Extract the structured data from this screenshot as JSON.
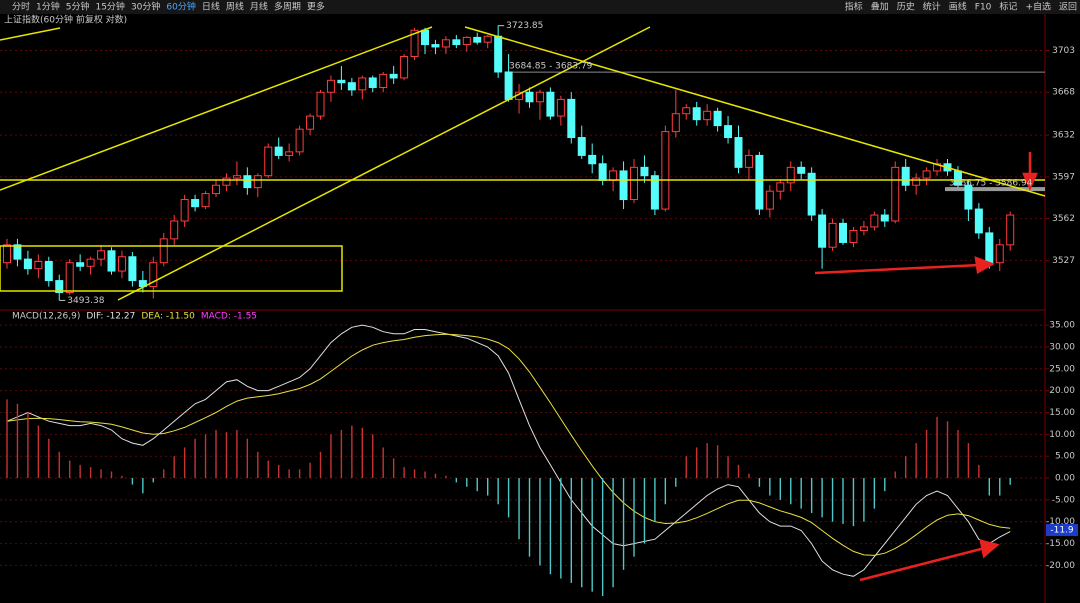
{
  "toolbar": {
    "periods": [
      "分时",
      "1分钟",
      "5分钟",
      "15分钟",
      "30分钟",
      "60分钟",
      "日线",
      "周线",
      "月线",
      "多周期",
      "更多"
    ],
    "active_index": 5,
    "tools": [
      "指标",
      "叠加",
      "历史",
      "统计",
      "画线",
      "F10",
      "标记",
      "+自选",
      "返回"
    ]
  },
  "chart_data": [
    {
      "type": "candlestick",
      "title": "上证指数(60分钟 前复权 对数)",
      "ylim": [
        3487,
        3737
      ],
      "yticks": [
        3527,
        3562,
        3597,
        3632,
        3668,
        3703
      ],
      "grid": true,
      "up_color": "#ff3c3c",
      "down_color": "#54fcfc",
      "high_label": 3723.85,
      "low_label": 3493.38,
      "levels": [
        {
          "value": 3684.85,
          "label": "3684.85 - 3683.79"
        },
        {
          "value": 3586.75,
          "label": "3586.75 - 3586.94"
        }
      ],
      "ohlc": [
        [
          3525,
          3545,
          3520,
          3540
        ],
        [
          3540,
          3545,
          3522,
          3528
        ],
        [
          3528,
          3535,
          3515,
          3520
        ],
        [
          3520,
          3532,
          3512,
          3526
        ],
        [
          3526,
          3530,
          3505,
          3510
        ],
        [
          3510,
          3515,
          3493.38,
          3500
        ],
        [
          3500,
          3528,
          3498,
          3525
        ],
        [
          3525,
          3532,
          3518,
          3522
        ],
        [
          3522,
          3530,
          3515,
          3528
        ],
        [
          3528,
          3540,
          3522,
          3535
        ],
        [
          3535,
          3538,
          3515,
          3518
        ],
        [
          3518,
          3535,
          3512,
          3530
        ],
        [
          3530,
          3534,
          3505,
          3510
        ],
        [
          3510,
          3518,
          3500,
          3505
        ],
        [
          3505,
          3530,
          3495,
          3525
        ],
        [
          3525,
          3550,
          3522,
          3545
        ],
        [
          3545,
          3565,
          3540,
          3560
        ],
        [
          3560,
          3582,
          3555,
          3578
        ],
        [
          3578,
          3582,
          3568,
          3572
        ],
        [
          3572,
          3585,
          3570,
          3583
        ],
        [
          3583,
          3595,
          3580,
          3590
        ],
        [
          3590,
          3600,
          3585,
          3596
        ],
        [
          3596,
          3610,
          3590,
          3598
        ],
        [
          3598,
          3605,
          3582,
          3588
        ],
        [
          3588,
          3600,
          3580,
          3598
        ],
        [
          3598,
          3625,
          3596,
          3622
        ],
        [
          3622,
          3630,
          3612,
          3615
        ],
        [
          3615,
          3625,
          3610,
          3618
        ],
        [
          3618,
          3640,
          3615,
          3637
        ],
        [
          3637,
          3650,
          3632,
          3648
        ],
        [
          3648,
          3670,
          3645,
          3668
        ],
        [
          3668,
          3682,
          3660,
          3678
        ],
        [
          3678,
          3690,
          3670,
          3676
        ],
        [
          3676,
          3680,
          3665,
          3670
        ],
        [
          3670,
          3682,
          3662,
          3680
        ],
        [
          3680,
          3682,
          3668,
          3672
        ],
        [
          3672,
          3685,
          3668,
          3683
        ],
        [
          3683,
          3690,
          3675,
          3680
        ],
        [
          3680,
          3700,
          3678,
          3698
        ],
        [
          3698,
          3722,
          3695,
          3720
        ],
        [
          3720,
          3722,
          3700,
          3708
        ],
        [
          3708,
          3712,
          3700,
          3706
        ],
        [
          3706,
          3715,
          3700,
          3712
        ],
        [
          3712,
          3716,
          3705,
          3708
        ],
        [
          3708,
          3715,
          3702,
          3714
        ],
        [
          3714,
          3718,
          3708,
          3710
        ],
        [
          3710,
          3716,
          3705,
          3715
        ],
        [
          3715,
          3723.85,
          3680,
          3685
        ],
        [
          3685,
          3700,
          3660,
          3662
        ],
        [
          3662,
          3675,
          3650,
          3668
        ],
        [
          3668,
          3672,
          3655,
          3660
        ],
        [
          3660,
          3670,
          3645,
          3668
        ],
        [
          3668,
          3672,
          3645,
          3648
        ],
        [
          3648,
          3665,
          3640,
          3662
        ],
        [
          3662,
          3668,
          3625,
          3630
        ],
        [
          3630,
          3640,
          3612,
          3615
        ],
        [
          3615,
          3625,
          3600,
          3608
        ],
        [
          3608,
          3615,
          3590,
          3594
        ],
        [
          3594,
          3605,
          3585,
          3602
        ],
        [
          3602,
          3610,
          3570,
          3578
        ],
        [
          3578,
          3612,
          3575,
          3605
        ],
        [
          3605,
          3615,
          3592,
          3598
        ],
        [
          3598,
          3602,
          3565,
          3570
        ],
        [
          3570,
          3640,
          3568,
          3635
        ],
        [
          3635,
          3670,
          3630,
          3650
        ],
        [
          3650,
          3658,
          3645,
          3655
        ],
        [
          3655,
          3660,
          3640,
          3645
        ],
        [
          3645,
          3658,
          3640,
          3652
        ],
        [
          3652,
          3655,
          3635,
          3640
        ],
        [
          3640,
          3648,
          3625,
          3630
        ],
        [
          3630,
          3640,
          3600,
          3605
        ],
        [
          3605,
          3620,
          3595,
          3615
        ],
        [
          3615,
          3618,
          3565,
          3570
        ],
        [
          3570,
          3590,
          3563,
          3585
        ],
        [
          3585,
          3595,
          3578,
          3592
        ],
        [
          3592,
          3610,
          3585,
          3605
        ],
        [
          3605,
          3610,
          3595,
          3600
        ],
        [
          3600,
          3605,
          3560,
          3565
        ],
        [
          3565,
          3570,
          3520,
          3538
        ],
        [
          3538,
          3562,
          3535,
          3558
        ],
        [
          3558,
          3562,
          3540,
          3542
        ],
        [
          3542,
          3555,
          3538,
          3552
        ],
        [
          3552,
          3560,
          3548,
          3555
        ],
        [
          3555,
          3568,
          3552,
          3565
        ],
        [
          3565,
          3570,
          3555,
          3560
        ],
        [
          3560,
          3610,
          3558,
          3605
        ],
        [
          3605,
          3612,
          3585,
          3590
        ],
        [
          3590,
          3600,
          3582,
          3596
        ],
        [
          3596,
          3605,
          3590,
          3602
        ],
        [
          3602,
          3612,
          3598,
          3608
        ],
        [
          3608,
          3612,
          3598,
          3602
        ],
        [
          3602,
          3606,
          3588,
          3590
        ],
        [
          3590,
          3594,
          3560,
          3570
        ],
        [
          3570,
          3575,
          3545,
          3550
        ],
        [
          3550,
          3555,
          3520,
          3525
        ],
        [
          3525,
          3545,
          3518,
          3540
        ],
        [
          3540,
          3568,
          3535,
          3565
        ]
      ]
    },
    {
      "type": "macd",
      "title": "MACD(12,26,9)",
      "readout": [
        {
          "text": "DIF: -12.27",
          "color": "#e0e0e0"
        },
        {
          "text": "DEA: -11.50",
          "color": "#e8e040"
        },
        {
          "text": "MACD: -1.55",
          "color": "#ff40ff"
        }
      ],
      "ylim": [
        -28.6,
        38
      ],
      "yticks": [
        {
          "value": 35,
          "label": "35.00"
        },
        {
          "value": 30,
          "label": "30.00"
        },
        {
          "value": 25,
          "label": "25.00"
        },
        {
          "value": 20,
          "label": "20.00"
        },
        {
          "value": 15,
          "label": "15.00"
        },
        {
          "value": 10,
          "label": "10.00"
        },
        {
          "value": 5,
          "label": "5.00"
        },
        {
          "value": 0,
          "label": "0.00"
        },
        {
          "value": -5,
          "label": "-5.00"
        },
        {
          "value": -10,
          "label": "-10.00"
        },
        {
          "value": -15,
          "label": "-15.00"
        },
        {
          "value": -20,
          "label": "-20.00"
        }
      ],
      "grid": true,
      "last_tag": -11.9,
      "up_color": "#c83232",
      "down_color": "#4ec8c8",
      "series": [
        {
          "style": "line",
          "color": "#e0e0e0",
          "values": [
            13,
            14,
            15,
            14,
            13,
            12.5,
            12,
            12,
            12.5,
            12,
            11,
            9,
            8,
            7.5,
            9,
            11,
            13,
            15,
            17,
            18,
            20,
            22,
            22.5,
            21,
            20,
            20,
            21,
            22,
            23,
            25,
            28,
            31,
            33,
            34.5,
            35,
            34.5,
            33.5,
            33,
            33,
            34,
            34,
            33.5,
            33,
            32.5,
            32,
            31,
            30,
            28,
            24,
            18,
            12,
            7,
            3,
            -1,
            -5,
            -8,
            -11,
            -13,
            -15,
            -15.5,
            -15,
            -14.5,
            -14,
            -12,
            -10,
            -8,
            -6,
            -4,
            -2.5,
            -1.5,
            -2,
            -5,
            -8,
            -10,
            -11,
            -11,
            -12,
            -15,
            -19,
            -21,
            -22,
            -22.5,
            -21,
            -18,
            -15,
            -12,
            -9,
            -6,
            -4,
            -3,
            -4,
            -7,
            -10,
            -14,
            -15,
            -13.5,
            -12.27
          ]
        },
        {
          "style": "line",
          "color": "#e8e040",
          "values": [
            13,
            13.3,
            13.6,
            13.7,
            13.6,
            13.4,
            13.1,
            12.9,
            12.8,
            12.6,
            12.3,
            11.7,
            11,
            10.3,
            10,
            10.2,
            10.8,
            11.6,
            12.7,
            13.8,
            15,
            16.4,
            17.6,
            18.3,
            18.6,
            18.9,
            19.3,
            19.9,
            20.5,
            21.4,
            22.7,
            24.4,
            26.2,
            27.9,
            29.3,
            30.4,
            31,
            31.4,
            31.7,
            32.2,
            32.6,
            32.8,
            32.9,
            32.8,
            32.6,
            32.3,
            31.8,
            31,
            29.6,
            27.3,
            24.3,
            20.8,
            17.2,
            13.5,
            9.8,
            6.2,
            2.8,
            -0.4,
            -3.3,
            -5.7,
            -7.6,
            -9,
            -10,
            -10.4,
            -10.3,
            -9.9,
            -9.1,
            -8.1,
            -7,
            -5.9,
            -5.1,
            -5.1,
            -5.7,
            -6.6,
            -7.5,
            -8.2,
            -9,
            -10.2,
            -12,
            -13.8,
            -15.4,
            -16.8,
            -17.6,
            -17.7,
            -17.2,
            -16.1,
            -14.7,
            -13,
            -11.2,
            -9.6,
            -8.5,
            -8.2,
            -8.6,
            -9.6,
            -10.6,
            -11.2,
            -11.5
          ]
        },
        {
          "style": "bar",
          "values": [
            18,
            17,
            15,
            12,
            9,
            6,
            4,
            3,
            2.5,
            2,
            1.5,
            0.5,
            -1.5,
            -3.5,
            -1,
            2,
            5,
            7,
            9,
            10,
            11,
            10.5,
            11,
            9,
            6,
            4,
            3,
            2,
            2,
            3.5,
            6,
            10,
            11,
            12,
            11.5,
            10,
            7,
            4.5,
            2.5,
            2,
            1.5,
            1,
            0.5,
            -1,
            -2,
            -3,
            -4,
            -6,
            -9,
            -14,
            -18,
            -20,
            -22,
            -23,
            -24,
            -25,
            -26,
            -27,
            -25,
            -21,
            -18,
            -15,
            -10,
            -6,
            -2,
            5,
            7,
            8,
            7.5,
            5,
            3,
            1,
            -2,
            -4,
            -5,
            -6,
            -7,
            -8,
            -9,
            -10,
            -10.5,
            -11,
            -10,
            -7,
            -3,
            1.5,
            5,
            8,
            11,
            14,
            13,
            11,
            8,
            3,
            -4,
            -4,
            -1.55
          ]
        }
      ]
    }
  ]
}
